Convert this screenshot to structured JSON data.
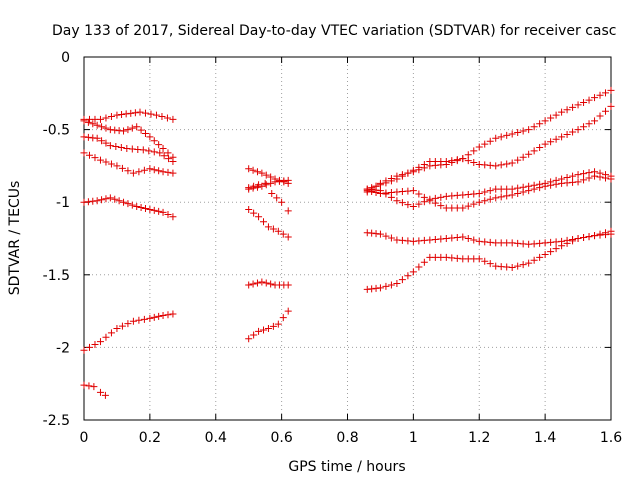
{
  "chart_data": {
    "type": "scatter",
    "title": "Day 133 of 2017, Sidereal Day-to-day VTEC variation (SDTVAR) for receiver casc",
    "xlabel": "GPS time / hours",
    "ylabel": "SDTVAR / TECUs",
    "xlim": [
      0,
      1.6
    ],
    "ylim": [
      -2.5,
      0
    ],
    "xticks": [
      0,
      0.2,
      0.4,
      0.6,
      0.8,
      1,
      1.2,
      1.4,
      1.6
    ],
    "xtick_labels": [
      "0",
      "0.2",
      "0.4",
      "0.6",
      "0.8",
      "1",
      "1.2",
      "1.4",
      "1.6"
    ],
    "yticks": [
      0,
      -0.5,
      -1,
      -1.5,
      -2,
      -2.5
    ],
    "ytick_labels": [
      "0",
      "-0.5",
      "-1",
      "-1.5",
      "-2",
      "-2.5"
    ],
    "grid": true,
    "marker": "plus",
    "color": "#e00000",
    "series": [
      {
        "name": "s1",
        "points": [
          [
            0.0,
            -0.43
          ],
          [
            0.05,
            -0.43
          ],
          [
            0.1,
            -0.4
          ],
          [
            0.17,
            -0.38
          ],
          [
            0.22,
            -0.4
          ],
          [
            0.27,
            -0.43
          ]
        ]
      },
      {
        "name": "s2",
        "points": [
          [
            0.0,
            -0.44
          ],
          [
            0.04,
            -0.47
          ],
          [
            0.08,
            -0.5
          ],
          [
            0.12,
            -0.51
          ],
          [
            0.16,
            -0.48
          ],
          [
            0.2,
            -0.55
          ],
          [
            0.24,
            -0.63
          ],
          [
            0.27,
            -0.69
          ]
        ]
      },
      {
        "name": "s3",
        "points": [
          [
            0.0,
            -0.55
          ],
          [
            0.04,
            -0.56
          ],
          [
            0.08,
            -0.61
          ],
          [
            0.13,
            -0.63
          ],
          [
            0.18,
            -0.64
          ],
          [
            0.23,
            -0.66
          ],
          [
            0.27,
            -0.72
          ]
        ]
      },
      {
        "name": "s4",
        "points": [
          [
            0.0,
            -0.66
          ],
          [
            0.05,
            -0.71
          ],
          [
            0.1,
            -0.75
          ],
          [
            0.15,
            -0.8
          ],
          [
            0.2,
            -0.77
          ],
          [
            0.24,
            -0.79
          ],
          [
            0.27,
            -0.8
          ]
        ]
      },
      {
        "name": "s5",
        "points": [
          [
            0.0,
            -1.0
          ],
          [
            0.04,
            -0.99
          ],
          [
            0.08,
            -0.97
          ],
          [
            0.12,
            -1.0
          ],
          [
            0.16,
            -1.03
          ],
          [
            0.2,
            -1.05
          ],
          [
            0.24,
            -1.07
          ],
          [
            0.27,
            -1.1
          ]
        ]
      },
      {
        "name": "s6",
        "points": [
          [
            0.0,
            -2.02
          ],
          [
            0.05,
            -1.96
          ],
          [
            0.1,
            -1.87
          ],
          [
            0.15,
            -1.82
          ],
          [
            0.2,
            -1.8
          ],
          [
            0.24,
            -1.78
          ],
          [
            0.27,
            -1.77
          ]
        ]
      },
      {
        "name": "s7",
        "points": [
          [
            0.0,
            -2.26
          ],
          [
            0.03,
            -2.27
          ],
          [
            0.05,
            -2.31
          ],
          [
            0.065,
            -2.33
          ]
        ]
      },
      {
        "name": "s8",
        "points": [
          [
            0.5,
            -0.77
          ],
          [
            0.54,
            -0.8
          ],
          [
            0.58,
            -0.84
          ],
          [
            0.62,
            -0.87
          ]
        ]
      },
      {
        "name": "s9",
        "points": [
          [
            0.5,
            -0.91
          ],
          [
            0.54,
            -0.89
          ],
          [
            0.58,
            -0.86
          ],
          [
            0.62,
            -0.85
          ]
        ]
      },
      {
        "name": "s10",
        "points": [
          [
            0.5,
            -0.9
          ],
          [
            0.53,
            -0.88
          ],
          [
            0.55,
            -0.87
          ],
          [
            0.57,
            -0.94
          ],
          [
            0.6,
            -1.0
          ],
          [
            0.62,
            -1.06
          ]
        ]
      },
      {
        "name": "s11",
        "points": [
          [
            0.5,
            -1.05
          ],
          [
            0.53,
            -1.1
          ],
          [
            0.56,
            -1.17
          ],
          [
            0.59,
            -1.2
          ],
          [
            0.62,
            -1.24
          ]
        ]
      },
      {
        "name": "s12",
        "points": [
          [
            0.5,
            -1.57
          ],
          [
            0.54,
            -1.55
          ],
          [
            0.58,
            -1.57
          ],
          [
            0.62,
            -1.57
          ]
        ]
      },
      {
        "name": "s13",
        "points": [
          [
            0.5,
            -1.94
          ],
          [
            0.53,
            -1.89
          ],
          [
            0.56,
            -1.87
          ],
          [
            0.59,
            -1.84
          ],
          [
            0.62,
            -1.75
          ]
        ]
      },
      {
        "name": "s14",
        "points": [
          [
            0.86,
            -0.93
          ],
          [
            0.9,
            -0.87
          ],
          [
            0.95,
            -0.82
          ],
          [
            1.0,
            -0.79
          ],
          [
            1.05,
            -0.75
          ],
          [
            1.1,
            -0.74
          ],
          [
            1.15,
            -0.7
          ],
          [
            1.2,
            -0.62
          ],
          [
            1.25,
            -0.56
          ],
          [
            1.3,
            -0.53
          ],
          [
            1.35,
            -0.5
          ],
          [
            1.4,
            -0.44
          ],
          [
            1.45,
            -0.38
          ],
          [
            1.5,
            -0.33
          ],
          [
            1.55,
            -0.28
          ],
          [
            1.6,
            -0.23
          ]
        ]
      },
      {
        "name": "s15",
        "points": [
          [
            0.86,
            -0.91
          ],
          [
            0.9,
            -0.88
          ],
          [
            0.95,
            -0.84
          ],
          [
            1.0,
            -0.78
          ],
          [
            1.05,
            -0.72
          ],
          [
            1.1,
            -0.72
          ],
          [
            1.15,
            -0.7
          ],
          [
            1.2,
            -0.74
          ],
          [
            1.25,
            -0.75
          ],
          [
            1.3,
            -0.73
          ],
          [
            1.35,
            -0.67
          ],
          [
            1.4,
            -0.6
          ],
          [
            1.45,
            -0.55
          ],
          [
            1.5,
            -0.5
          ],
          [
            1.55,
            -0.44
          ],
          [
            1.6,
            -0.34
          ]
        ]
      },
      {
        "name": "s16",
        "points": [
          [
            0.86,
            -0.91
          ],
          [
            0.9,
            -0.92
          ],
          [
            0.95,
            -0.99
          ],
          [
            1.0,
            -1.03
          ],
          [
            1.05,
            -0.98
          ],
          [
            1.1,
            -0.96
          ],
          [
            1.15,
            -0.95
          ],
          [
            1.2,
            -0.94
          ],
          [
            1.25,
            -0.91
          ],
          [
            1.3,
            -0.91
          ],
          [
            1.35,
            -0.89
          ],
          [
            1.4,
            -0.87
          ],
          [
            1.45,
            -0.84
          ],
          [
            1.5,
            -0.81
          ],
          [
            1.55,
            -0.79
          ],
          [
            1.6,
            -0.82
          ]
        ]
      },
      {
        "name": "s17",
        "points": [
          [
            0.86,
            -0.92
          ],
          [
            0.9,
            -0.94
          ],
          [
            0.95,
            -0.93
          ],
          [
            1.0,
            -0.92
          ],
          [
            1.05,
            -0.99
          ],
          [
            1.1,
            -1.04
          ],
          [
            1.15,
            -1.04
          ],
          [
            1.2,
            -1.0
          ],
          [
            1.25,
            -0.97
          ],
          [
            1.3,
            -0.95
          ],
          [
            1.35,
            -0.92
          ],
          [
            1.4,
            -0.89
          ],
          [
            1.45,
            -0.87
          ],
          [
            1.5,
            -0.86
          ],
          [
            1.55,
            -0.82
          ],
          [
            1.6,
            -0.84
          ]
        ]
      },
      {
        "name": "s18",
        "points": [
          [
            0.86,
            -1.21
          ],
          [
            0.9,
            -1.22
          ],
          [
            0.95,
            -1.26
          ],
          [
            1.0,
            -1.27
          ],
          [
            1.05,
            -1.26
          ],
          [
            1.1,
            -1.25
          ],
          [
            1.15,
            -1.24
          ],
          [
            1.2,
            -1.27
          ],
          [
            1.25,
            -1.28
          ],
          [
            1.3,
            -1.28
          ],
          [
            1.35,
            -1.29
          ],
          [
            1.4,
            -1.28
          ],
          [
            1.45,
            -1.27
          ],
          [
            1.5,
            -1.25
          ],
          [
            1.55,
            -1.23
          ],
          [
            1.6,
            -1.2
          ]
        ]
      },
      {
        "name": "s19",
        "points": [
          [
            0.86,
            -1.6
          ],
          [
            0.9,
            -1.59
          ],
          [
            0.95,
            -1.56
          ],
          [
            1.0,
            -1.48
          ],
          [
            1.05,
            -1.38
          ],
          [
            1.1,
            -1.38
          ],
          [
            1.15,
            -1.39
          ],
          [
            1.2,
            -1.39
          ],
          [
            1.25,
            -1.44
          ],
          [
            1.3,
            -1.45
          ],
          [
            1.35,
            -1.42
          ],
          [
            1.4,
            -1.36
          ],
          [
            1.45,
            -1.3
          ],
          [
            1.5,
            -1.25
          ],
          [
            1.55,
            -1.23
          ],
          [
            1.6,
            -1.22
          ]
        ]
      }
    ]
  }
}
